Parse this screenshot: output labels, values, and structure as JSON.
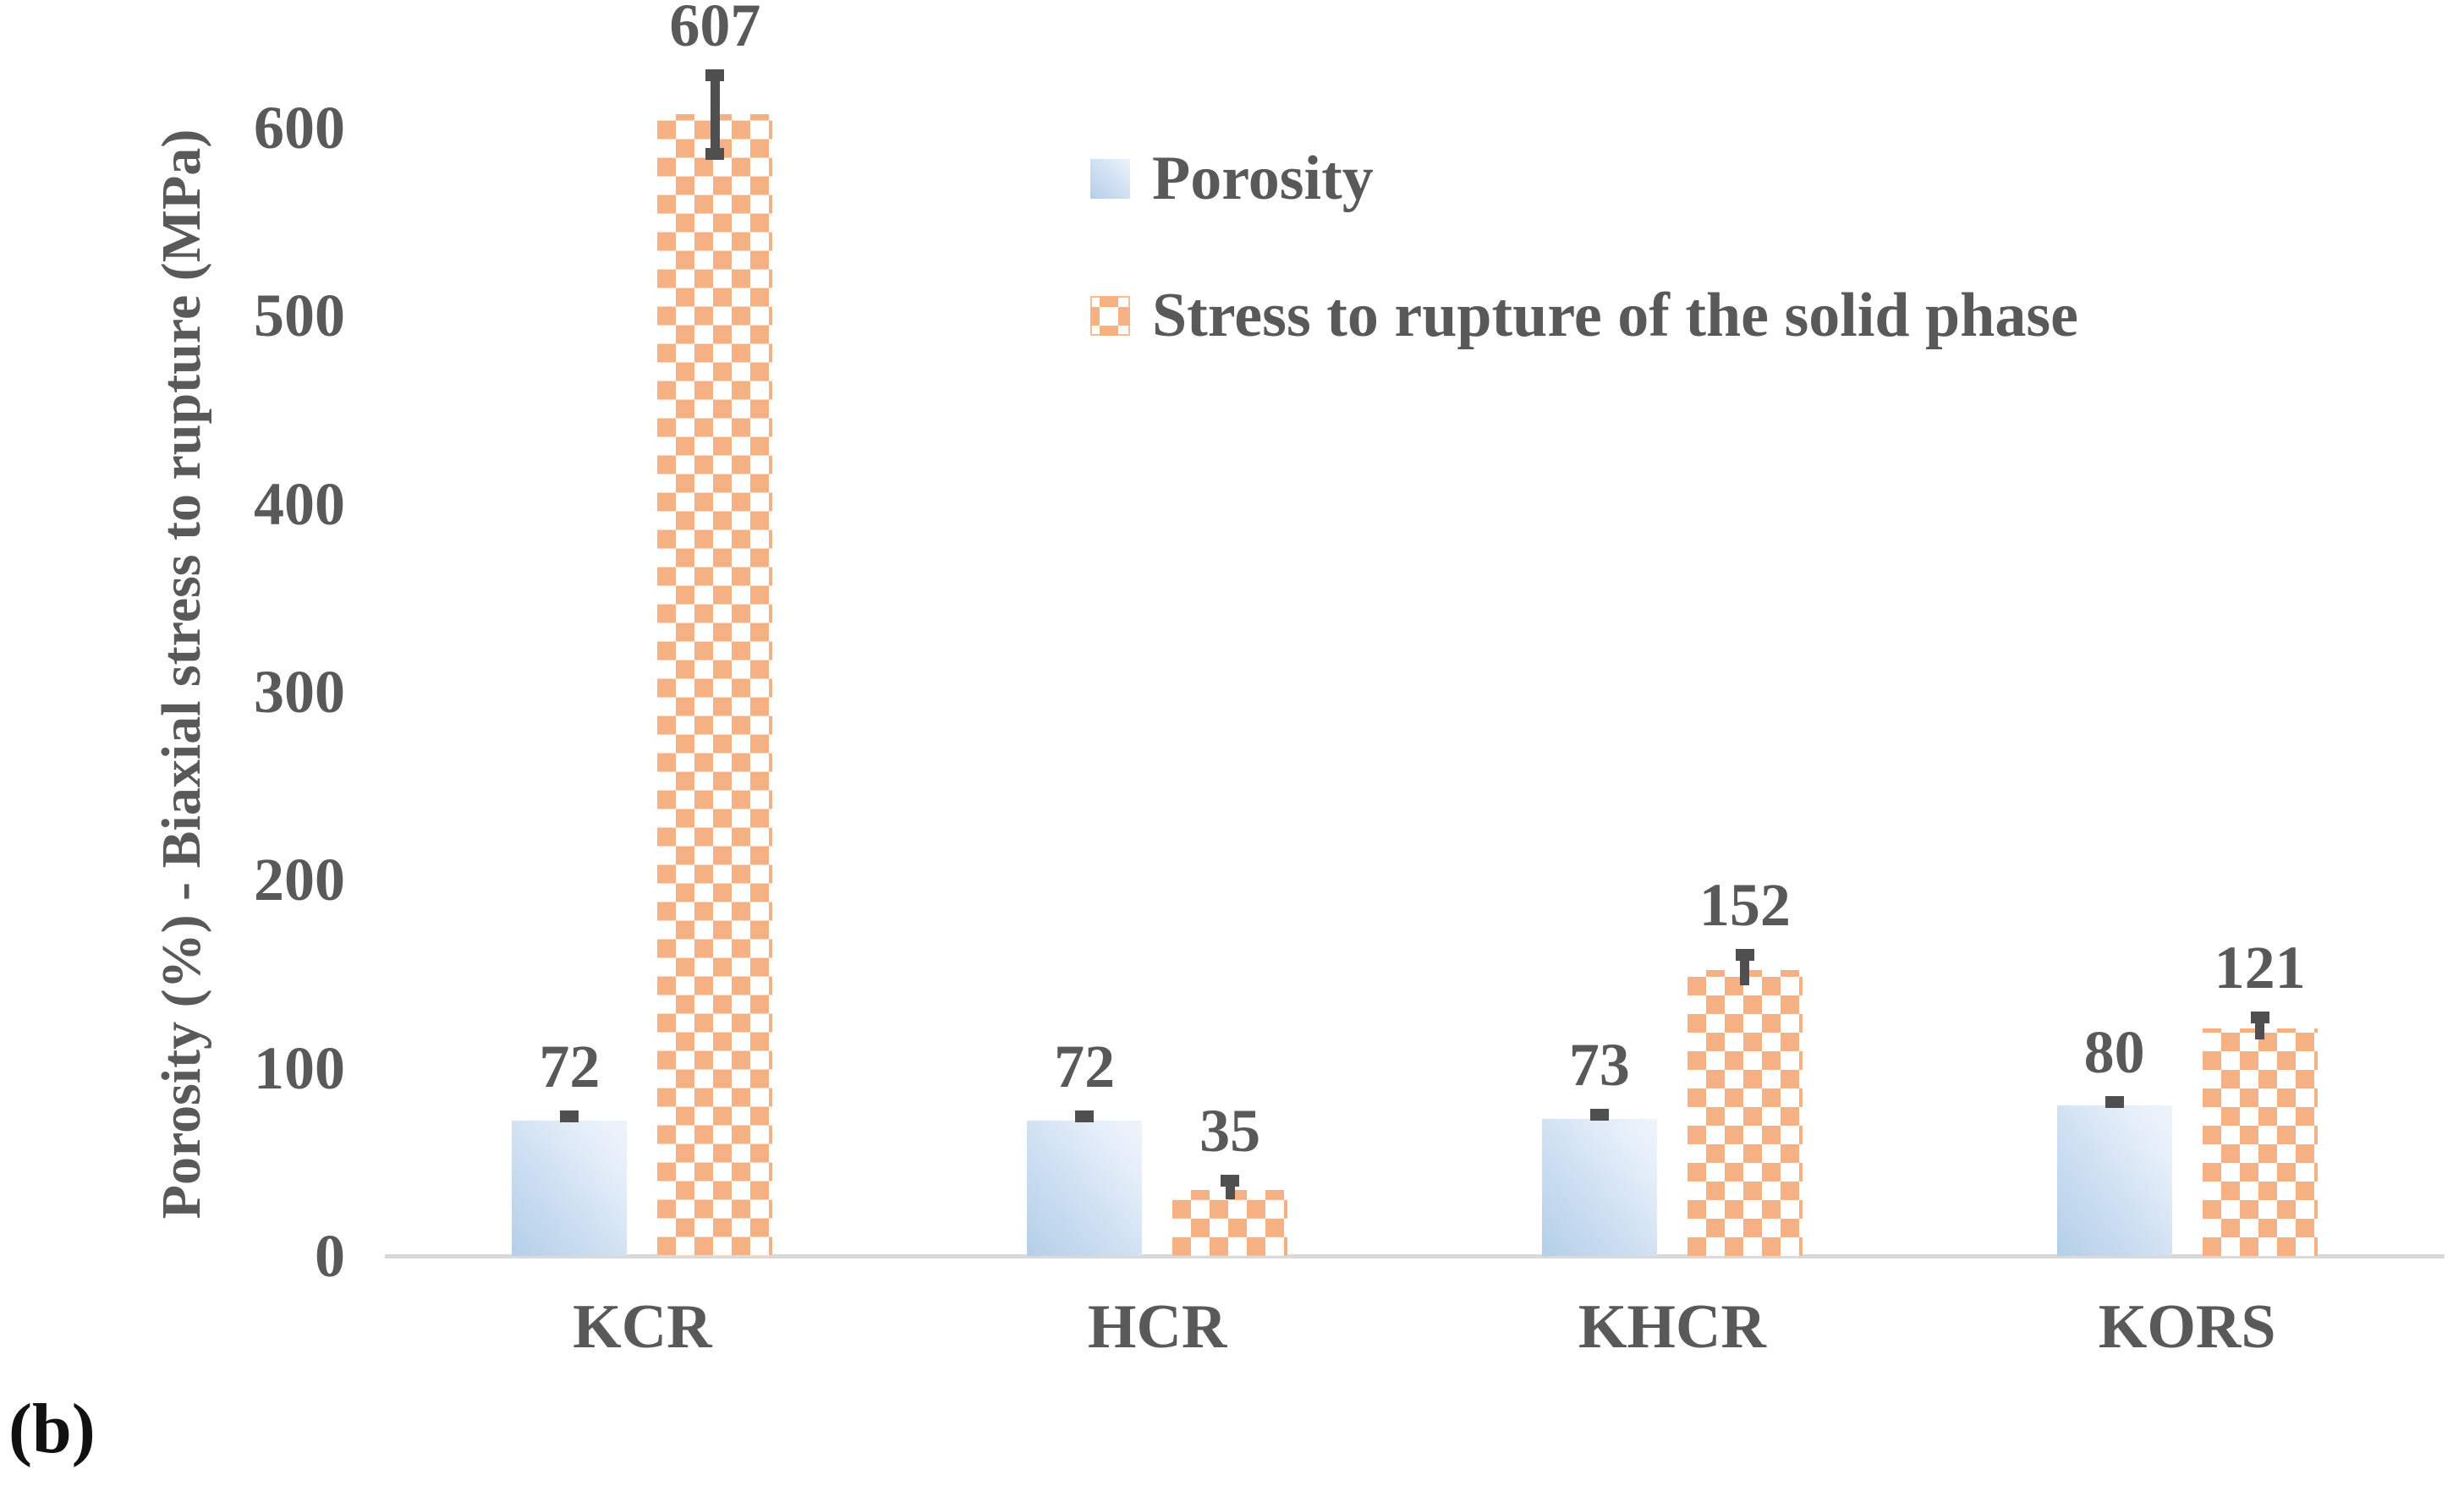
{
  "figure_label": "(b)",
  "legend": {
    "items": [
      {
        "label": "Porosity",
        "swatch": "blue-gradient-square"
      },
      {
        "label": "Stress to rupture of the solid phase",
        "swatch": "orange-checker-square"
      }
    ]
  },
  "chart_data": {
    "type": "bar",
    "categories": [
      "KCR",
      "HCR",
      "KHCR",
      "KORS"
    ],
    "series": [
      {
        "name": "Porosity",
        "values": [
          72,
          72,
          73,
          80
        ],
        "errors": [
          2,
          2,
          2,
          2
        ],
        "style": "blue-gradient"
      },
      {
        "name": "Stress to rupture of the solid phase",
        "values": [
          607,
          35,
          152,
          121
        ],
        "errors": [
          21,
          5,
          8,
          6
        ],
        "style": "orange-checker"
      }
    ],
    "data_labels": [
      [
        "72",
        "72",
        "73",
        "80"
      ],
      [
        "607",
        "35",
        "152",
        "121"
      ]
    ],
    "title": "",
    "xlabel": "",
    "ylabel": "Porosity (%) - Biaxial stress to rupture (MPa)",
    "y_ticks": [
      "0",
      "100",
      "200",
      "300",
      "400",
      "500",
      "600"
    ],
    "ylim": [
      0,
      650
    ],
    "grid": false,
    "legend_position": "upper-right-inside",
    "error_bars": true
  },
  "colors": {
    "text": "#595959",
    "axis_line": "#d9d9d9",
    "porosity_fill_dark": "#b4cfe9",
    "porosity_fill_light": "#edf4fb",
    "stress_checker": "#f5b183",
    "error_bar": "#4f4f4f",
    "figure_label": "#111111",
    "background": "#ffffff"
  }
}
